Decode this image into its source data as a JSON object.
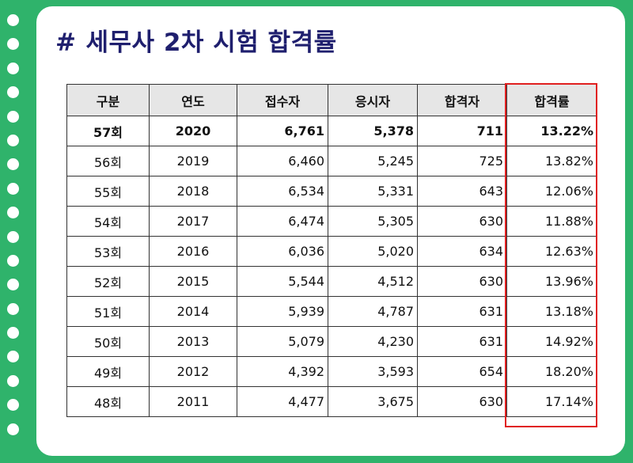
{
  "title": {
    "hash": "#",
    "text": "세무사 2차 시험 합격률"
  },
  "table": {
    "headers": [
      "구분",
      "연도",
      "접수자",
      "응시자",
      "합격자",
      "합격률"
    ],
    "rows": [
      [
        "57회",
        "2020",
        "6,761",
        "5,378",
        "711",
        "13.22%"
      ],
      [
        "56회",
        "2019",
        "6,460",
        "5,245",
        "725",
        "13.82%"
      ],
      [
        "55회",
        "2018",
        "6,534",
        "5,331",
        "643",
        "12.06%"
      ],
      [
        "54회",
        "2017",
        "6,474",
        "5,305",
        "630",
        "11.88%"
      ],
      [
        "53회",
        "2016",
        "6,036",
        "5,020",
        "634",
        "12.63%"
      ],
      [
        "52회",
        "2015",
        "5,544",
        "4,512",
        "630",
        "13.96%"
      ],
      [
        "51회",
        "2014",
        "5,939",
        "4,787",
        "631",
        "13.18%"
      ],
      [
        "50회",
        "2013",
        "5,079",
        "4,230",
        "631",
        "14.92%"
      ],
      [
        "49회",
        "2012",
        "4,392",
        "3,593",
        "654",
        "18.20%"
      ],
      [
        "48회",
        "2011",
        "4,477",
        "3,675",
        "630",
        "17.14%"
      ]
    ]
  },
  "colors": {
    "background": "#2fb36b",
    "title": "#1f1f6e",
    "highlight": "#e02020",
    "header_bg": "#e6e6e6"
  }
}
